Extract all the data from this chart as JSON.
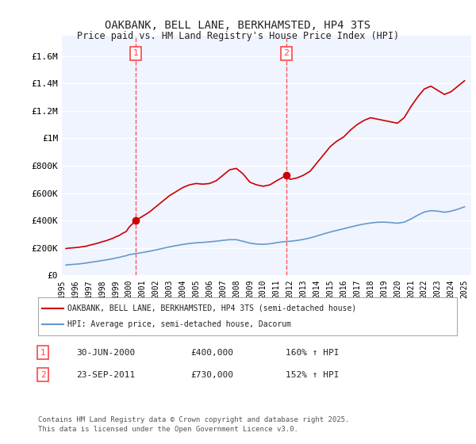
{
  "title": "OAKBANK, BELL LANE, BERKHAMSTED, HP4 3TS",
  "subtitle": "Price paid vs. HM Land Registry's House Price Index (HPI)",
  "xlabel": "",
  "ylabel": "",
  "background_color": "#ffffff",
  "plot_bg_color": "#f0f4ff",
  "grid_color": "#ffffff",
  "red_line_color": "#cc0000",
  "blue_line_color": "#6699cc",
  "marker1_color": "#cc0000",
  "marker2_color": "#cc0000",
  "vline_color": "#ff4444",
  "annotation_box_color": "#ff4444",
  "ylim": [
    0,
    1750000
  ],
  "xlim_start": 1995.0,
  "xlim_end": 2025.5,
  "sale1_year": 2000.5,
  "sale1_price": 400000,
  "sale2_year": 2011.73,
  "sale2_price": 730000,
  "footnote": "Contains HM Land Registry data © Crown copyright and database right 2025.\nThis data is licensed under the Open Government Licence v3.0.",
  "legend_label_red": "OAKBANK, BELL LANE, BERKHAMSTED, HP4 3TS (semi-detached house)",
  "legend_label_blue": "HPI: Average price, semi-detached house, Dacorum",
  "annotation1_label": "1",
  "annotation1_date": "30-JUN-2000",
  "annotation1_price": "£400,000",
  "annotation1_hpi": "160% ↑ HPI",
  "annotation2_label": "2",
  "annotation2_date": "23-SEP-2011",
  "annotation2_price": "£730,000",
  "annotation2_hpi": "152% ↑ HPI",
  "red_x": [
    1995.3,
    1995.5,
    1995.8,
    1996.0,
    1996.3,
    1996.5,
    1996.8,
    1997.0,
    1997.3,
    1997.5,
    1997.8,
    1998.0,
    1998.3,
    1998.5,
    1998.8,
    1999.0,
    1999.3,
    1999.5,
    1999.8,
    2000.0,
    2000.5,
    2001.0,
    2001.5,
    2002.0,
    2002.5,
    2003.0,
    2003.5,
    2004.0,
    2004.5,
    2005.0,
    2005.5,
    2006.0,
    2006.5,
    2007.0,
    2007.5,
    2008.0,
    2008.5,
    2009.0,
    2009.5,
    2010.0,
    2010.5,
    2011.0,
    2011.73,
    2012.0,
    2012.5,
    2013.0,
    2013.5,
    2014.0,
    2014.5,
    2015.0,
    2015.5,
    2016.0,
    2016.5,
    2017.0,
    2017.5,
    2018.0,
    2018.5,
    2019.0,
    2019.5,
    2020.0,
    2020.5,
    2021.0,
    2021.5,
    2022.0,
    2022.5,
    2023.0,
    2023.5,
    2024.0,
    2024.5,
    2025.0
  ],
  "red_y": [
    195000,
    198000,
    200000,
    202000,
    205000,
    208000,
    212000,
    218000,
    225000,
    230000,
    238000,
    245000,
    252000,
    260000,
    270000,
    280000,
    292000,
    305000,
    320000,
    350000,
    400000,
    430000,
    460000,
    500000,
    540000,
    580000,
    610000,
    640000,
    660000,
    670000,
    665000,
    670000,
    690000,
    730000,
    770000,
    780000,
    740000,
    680000,
    660000,
    650000,
    660000,
    690000,
    730000,
    700000,
    710000,
    730000,
    760000,
    820000,
    880000,
    940000,
    980000,
    1010000,
    1060000,
    1100000,
    1130000,
    1150000,
    1140000,
    1130000,
    1120000,
    1110000,
    1150000,
    1230000,
    1300000,
    1360000,
    1380000,
    1350000,
    1320000,
    1340000,
    1380000,
    1420000
  ],
  "blue_x": [
    1995.3,
    1995.5,
    1995.8,
    1996.0,
    1996.3,
    1996.5,
    1996.8,
    1997.0,
    1997.3,
    1997.5,
    1997.8,
    1998.0,
    1998.3,
    1998.5,
    1998.8,
    1999.0,
    1999.3,
    1999.5,
    1999.8,
    2000.0,
    2000.5,
    2001.0,
    2001.5,
    2002.0,
    2002.5,
    2003.0,
    2003.5,
    2004.0,
    2004.5,
    2005.0,
    2005.5,
    2006.0,
    2006.5,
    2007.0,
    2007.5,
    2008.0,
    2008.5,
    2009.0,
    2009.5,
    2010.0,
    2010.5,
    2011.0,
    2011.5,
    2012.0,
    2012.5,
    2013.0,
    2013.5,
    2014.0,
    2014.5,
    2015.0,
    2015.5,
    2016.0,
    2016.5,
    2017.0,
    2017.5,
    2018.0,
    2018.5,
    2019.0,
    2019.5,
    2020.0,
    2020.5,
    2021.0,
    2021.5,
    2022.0,
    2022.5,
    2023.0,
    2023.5,
    2024.0,
    2024.5,
    2025.0
  ],
  "blue_y": [
    75000,
    77000,
    79000,
    81000,
    83000,
    86000,
    89000,
    93000,
    97000,
    100000,
    104000,
    108000,
    112000,
    116000,
    121000,
    126000,
    131000,
    137000,
    143000,
    150000,
    158000,
    166000,
    175000,
    185000,
    196000,
    207000,
    216000,
    225000,
    232000,
    237000,
    240000,
    244000,
    249000,
    255000,
    260000,
    260000,
    248000,
    235000,
    228000,
    226000,
    230000,
    238000,
    245000,
    248000,
    254000,
    262000,
    273000,
    287000,
    302000,
    316000,
    328000,
    340000,
    352000,
    364000,
    374000,
    382000,
    387000,
    388000,
    385000,
    380000,
    388000,
    410000,
    438000,
    462000,
    472000,
    468000,
    460000,
    468000,
    482000,
    500000
  ],
  "yticks": [
    0,
    200000,
    400000,
    600000,
    800000,
    1000000,
    1200000,
    1400000,
    1600000
  ],
  "ytick_labels": [
    "£0",
    "£200K",
    "£400K",
    "£600K",
    "£800K",
    "£1M",
    "£1.2M",
    "£1.4M",
    "£1.6M"
  ],
  "xticks": [
    1995,
    1996,
    1997,
    1998,
    1999,
    2000,
    2001,
    2002,
    2003,
    2004,
    2005,
    2006,
    2007,
    2008,
    2009,
    2010,
    2011,
    2012,
    2013,
    2014,
    2015,
    2016,
    2017,
    2018,
    2019,
    2020,
    2021,
    2022,
    2023,
    2024,
    2025
  ]
}
